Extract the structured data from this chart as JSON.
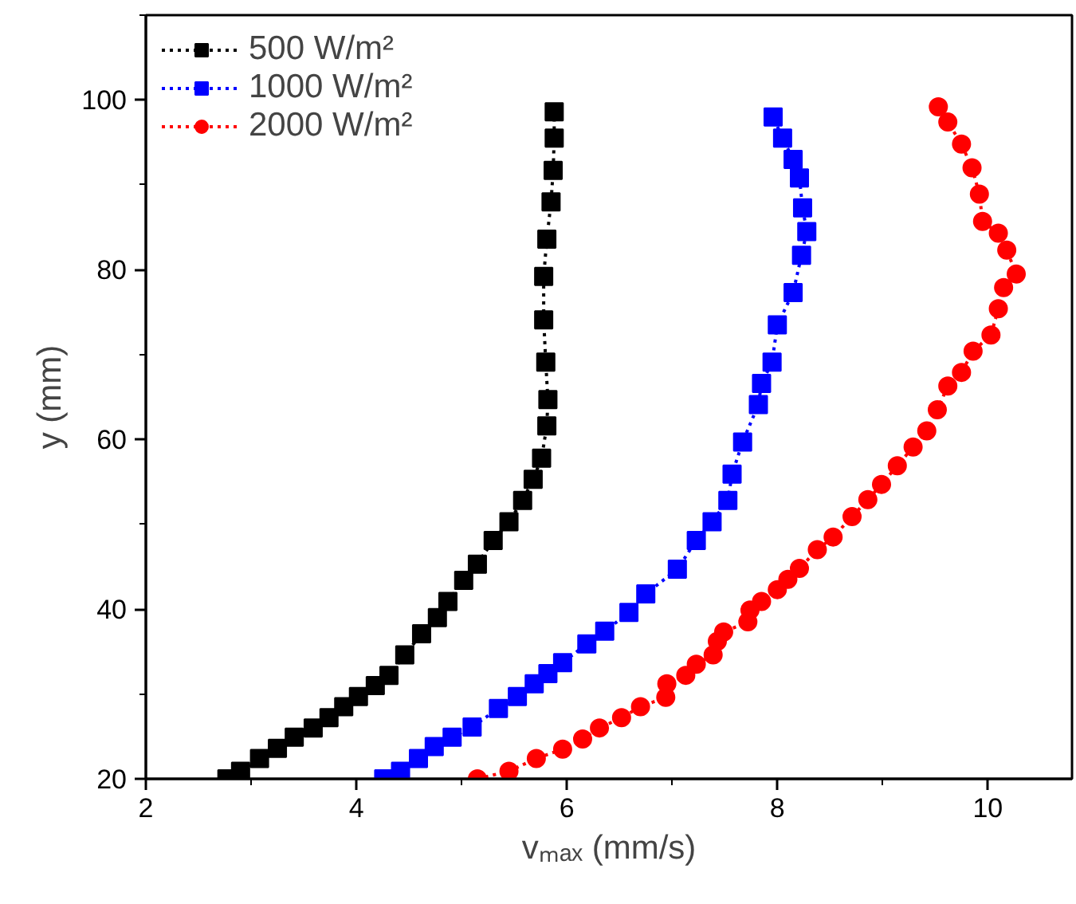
{
  "chart_data": {
    "type": "line",
    "xlabel": "vₘₐₓ (mm/s)",
    "ylabel": "y (mm)",
    "xlim": [
      2,
      10.8
    ],
    "ylim": [
      20,
      110
    ],
    "xticks": [
      2,
      4,
      6,
      8,
      10
    ],
    "yticks": [
      20,
      40,
      60,
      80,
      100
    ],
    "grid": false,
    "legend": "top left",
    "line_style": "dotted",
    "series": [
      {
        "name": "500 W/m²",
        "color": "#000000",
        "marker": "square",
        "x": [
          2.77,
          2.9,
          3.08,
          3.25,
          3.41,
          3.59,
          3.74,
          3.88,
          4.02,
          4.18,
          4.31,
          4.46,
          4.62,
          4.77,
          4.87,
          5.02,
          5.15,
          5.3,
          5.45,
          5.58,
          5.68,
          5.76,
          5.81,
          5.82,
          5.8,
          5.78,
          5.78,
          5.81,
          5.85,
          5.87,
          5.88,
          5.88
        ],
        "values": [
          20,
          20.9,
          22.4,
          23.6,
          24.9,
          26,
          27.2,
          28.5,
          29.7,
          31,
          32.2,
          34.6,
          37.1,
          39,
          40.9,
          43.4,
          45.3,
          48.1,
          50.3,
          52.8,
          55.3,
          57.8,
          61.6,
          64.7,
          69.1,
          74.1,
          79.2,
          83.6,
          88,
          91.7,
          95.5,
          98.6
        ]
      },
      {
        "name": "1000 W/m²",
        "color": "#0000ff",
        "marker": "square",
        "x": [
          4.26,
          4.42,
          4.59,
          4.74,
          4.91,
          5.1,
          5.35,
          5.53,
          5.69,
          5.82,
          5.96,
          6.19,
          6.36,
          6.59,
          6.75,
          7.05,
          7.23,
          7.38,
          7.53,
          7.57,
          7.67,
          7.82,
          7.85,
          7.95,
          8.0,
          8.15,
          8.23,
          8.28,
          8.24,
          8.21,
          8.15,
          8.05,
          7.96
        ],
        "values": [
          20,
          20.9,
          22.4,
          23.8,
          24.9,
          26.1,
          28.3,
          29.7,
          31.2,
          32.4,
          33.7,
          35.9,
          37.4,
          39.6,
          41.8,
          44.7,
          48.1,
          50.3,
          52.8,
          55.9,
          59.7,
          64.1,
          66.6,
          69.1,
          73.5,
          77.3,
          81.7,
          84.5,
          87.3,
          90.8,
          93,
          95.5,
          98
        ]
      },
      {
        "name": "2000 W/m²",
        "color": "#ff0000",
        "marker": "circle",
        "x": [
          5.15,
          5.45,
          5.71,
          5.96,
          6.15,
          6.31,
          6.52,
          6.7,
          6.94,
          6.95,
          7.13,
          7.23,
          7.39,
          7.43,
          7.49,
          7.72,
          7.74,
          7.85,
          8.0,
          8.1,
          8.21,
          8.38,
          8.53,
          8.71,
          8.86,
          8.99,
          9.14,
          9.29,
          9.42,
          9.52,
          9.62,
          9.75,
          9.86,
          10.03,
          10.1,
          10.15,
          10.27,
          10.18,
          10.1,
          9.95,
          9.92,
          9.85,
          9.75,
          9.62,
          9.53
        ],
        "values": [
          20,
          20.9,
          22.4,
          23.5,
          24.7,
          26,
          27.2,
          28.5,
          29.6,
          31.2,
          32.2,
          33.5,
          34.6,
          36.2,
          37.3,
          38.5,
          39.9,
          40.9,
          42.3,
          43.5,
          44.8,
          47,
          48.5,
          50.9,
          52.9,
          54.7,
          56.9,
          59.1,
          61,
          63.5,
          66.3,
          67.9,
          70.4,
          72.3,
          75.4,
          77.9,
          79.5,
          82.3,
          84.3,
          85.7,
          88.9,
          92,
          94.8,
          97.4,
          99.2
        ]
      }
    ]
  }
}
